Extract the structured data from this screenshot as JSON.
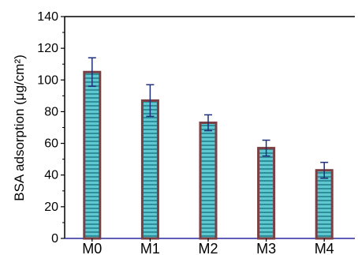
{
  "chart_data": {
    "type": "bar",
    "categories": [
      "M0",
      "M1",
      "M2",
      "M3",
      "M4"
    ],
    "values": [
      105,
      87,
      73,
      57,
      43
    ],
    "error": [
      9,
      10,
      5,
      5,
      5
    ],
    "title": "",
    "xlabel": "",
    "ylabel": "BSA adsorption (μg/cm²)",
    "ylim": [
      0,
      140
    ],
    "yticks": [
      0,
      20,
      40,
      60,
      80,
      100,
      120,
      140
    ],
    "grid": false,
    "legend": "none",
    "colors": {
      "bar_outline": "#7b3f44",
      "bar_fill": "#5fc8d0",
      "bar_stripe": "#2e8f9b",
      "error_bar": "#1f2f7a",
      "axis": "#000000",
      "baseline": "#2a2aa0"
    }
  }
}
